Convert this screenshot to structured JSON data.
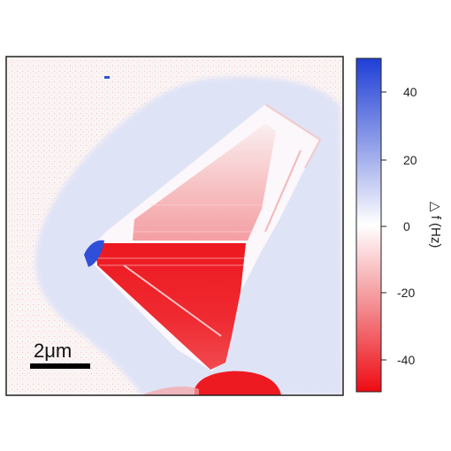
{
  "image": {
    "scale_bar_label": "2μm",
    "colorbar": {
      "label": "△ f (Hz)",
      "ticks": [
        "40",
        "20",
        "0",
        "-20",
        "-40"
      ],
      "range": [
        -50,
        50
      ],
      "colors": {
        "top": "#1f3fd6",
        "mid": "#ffffff",
        "bottom": "#ee0a12"
      }
    },
    "colors": {
      "background": "#fbf4f4",
      "halo": "#dfe3f6",
      "plateau": "#fbf7fa",
      "red_strong": "#ee1a22",
      "red_light": "#f6a3a6",
      "blue_spot": "#2f4fd9"
    }
  }
}
